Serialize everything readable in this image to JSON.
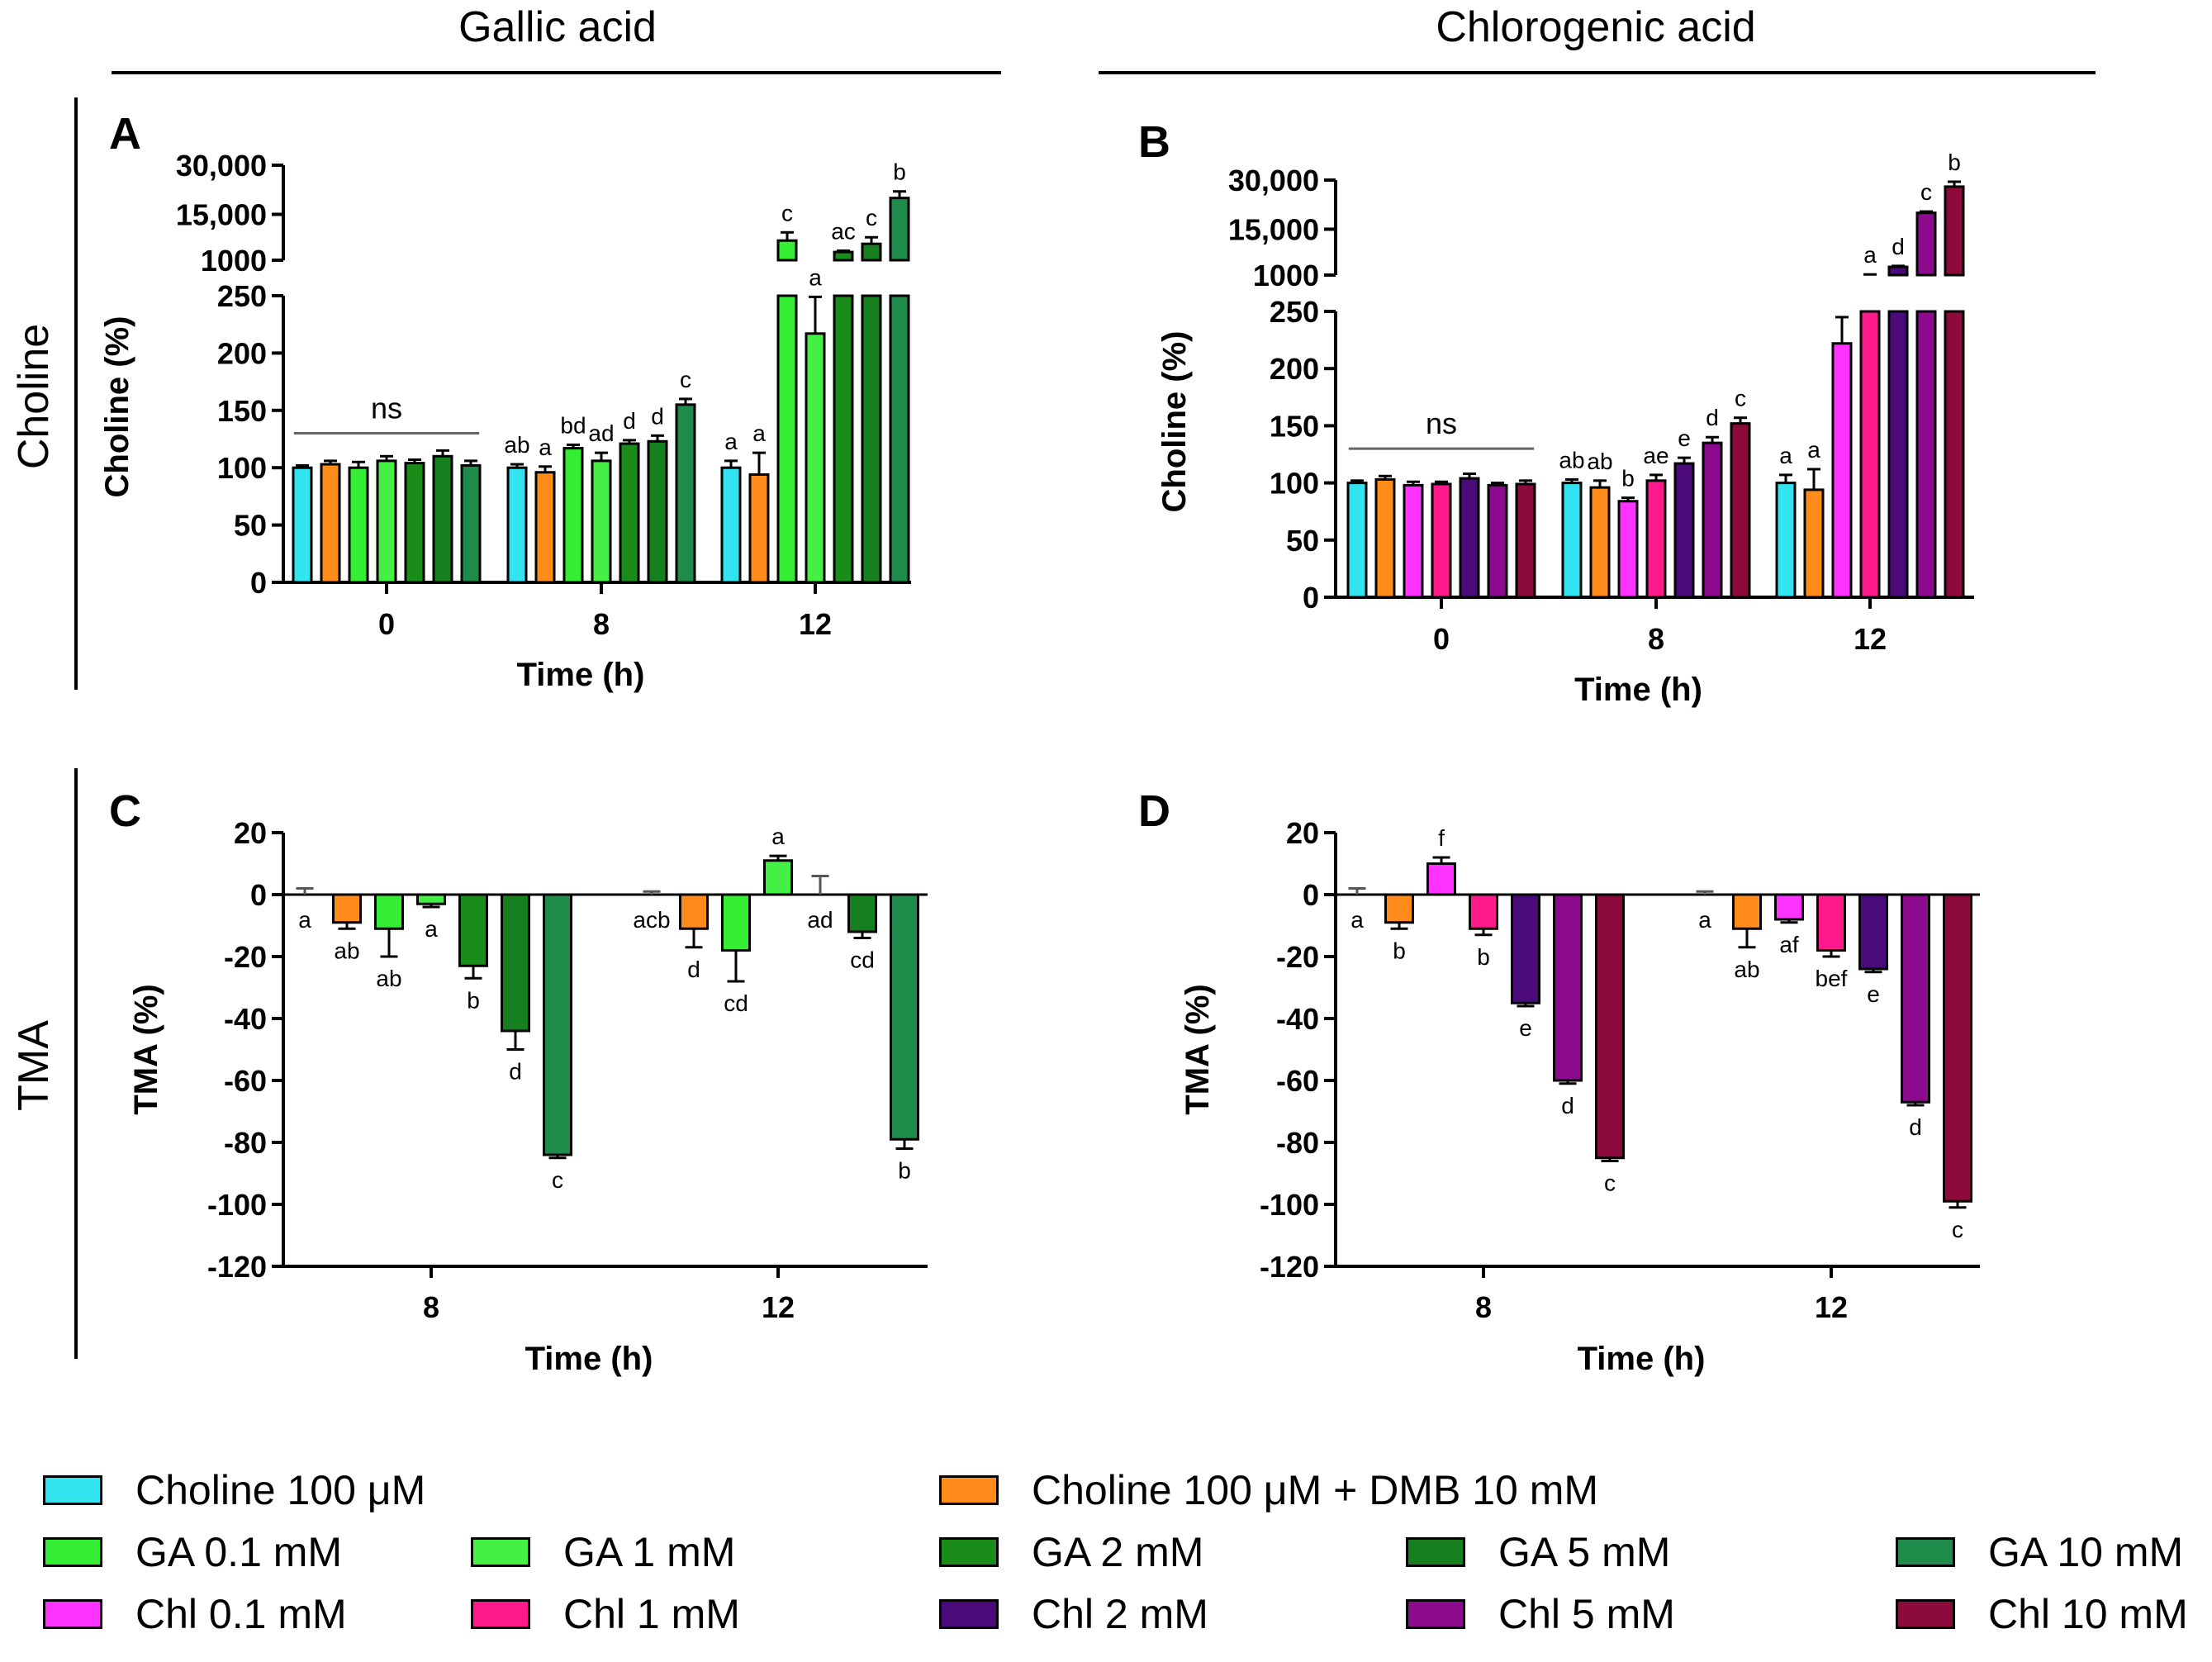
{
  "figure": {
    "column_titles": [
      "Gallic acid",
      "Chlorogenic acid"
    ],
    "row_titles": [
      "Choline",
      "TMA"
    ]
  },
  "colors": {
    "choline": "#33e3f0",
    "dmb": "#ff8c1a",
    "ga01": "#33ee33",
    "ga1": "#44f044",
    "ga2": "#1a8c1a",
    "ga5": "#16801e",
    "ga10": "#1f8c4c",
    "chl01": "#ff33ff",
    "chl1": "#ff1a8c",
    "chl2": "#4a0a7a",
    "chl5": "#8c0a8c",
    "chl10": "#8c0a3c"
  },
  "legend": [
    {
      "label": "Choline 100 μM",
      "color": "#33e3f0"
    },
    {
      "label": "Choline 100 μM + DMB 10 mM",
      "color": "#ff8c1a"
    },
    {
      "label": "GA 0.1 mM",
      "color": "#33ee33"
    },
    {
      "label": "GA 1 mM",
      "color": "#44f044"
    },
    {
      "label": "GA 2 mM",
      "color": "#1a8c1a"
    },
    {
      "label": "GA 5 mM",
      "color": "#16801e"
    },
    {
      "label": "GA 10 mM",
      "color": "#1f8c4c"
    },
    {
      "label": "Chl 0.1 mM",
      "color": "#ff33ff"
    },
    {
      "label": "Chl 1 mM",
      "color": "#ff1a8c"
    },
    {
      "label": "Chl 2 mM",
      "color": "#4a0a7a"
    },
    {
      "label": "Chl 5 mM",
      "color": "#8c0a8c"
    },
    {
      "label": "Chl 10 mM",
      "color": "#8c0a3c"
    }
  ],
  "chart_data": [
    {
      "panel": "A",
      "type": "bar",
      "ylabel": "Choline (%)",
      "xlabel": "Time (h)",
      "categories": [
        "0",
        "8",
        "12"
      ],
      "ylim_lower": [
        0,
        250
      ],
      "yticks_lower": [
        0,
        50,
        100,
        150,
        200,
        250
      ],
      "ylim_upper": [
        1000,
        30000
      ],
      "yticks_upper": [
        "1000",
        "15,000",
        "30,000"
      ],
      "ns_label": "ns",
      "series_colors": [
        "#33e3f0",
        "#ff8c1a",
        "#33ee33",
        "#44f044",
        "#1a8c1a",
        "#16801e",
        "#1f8c4c"
      ],
      "groups": [
        {
          "values": [
            100,
            103,
            100,
            106,
            104,
            110,
            102
          ],
          "errors": [
            2,
            3,
            5,
            4,
            3,
            5,
            4
          ],
          "letters": [
            "",
            "",
            "",
            "",
            "",
            "",
            ""
          ]
        },
        {
          "values": [
            100,
            96,
            117,
            106,
            121,
            123,
            155
          ],
          "errors": [
            3,
            5,
            3,
            7,
            3,
            5,
            5
          ],
          "letters": [
            "ab",
            "a",
            "bd",
            "ad",
            "d",
            "d",
            "c"
          ]
        },
        {
          "values": [
            100,
            94,
            7000,
            217,
            3500,
            6000,
            20000
          ],
          "errors": [
            6,
            19,
            2500,
            32,
            400,
            2000,
            2000
          ],
          "letters": [
            "a",
            "a",
            "c",
            "a",
            "ac",
            "c",
            "b"
          ]
        }
      ]
    },
    {
      "panel": "B",
      "type": "bar",
      "ylabel": "Choline (%)",
      "xlabel": "Time (h)",
      "categories": [
        "0",
        "8",
        "12"
      ],
      "ylim_lower": [
        0,
        250
      ],
      "yticks_lower": [
        0,
        50,
        100,
        150,
        200,
        250
      ],
      "ylim_upper": [
        1000,
        30000
      ],
      "yticks_upper": [
        "1000",
        "15,000",
        "30,000"
      ],
      "ns_label": "ns",
      "series_colors": [
        "#33e3f0",
        "#ff8c1a",
        "#ff33ff",
        "#ff1a8c",
        "#4a0a7a",
        "#8c0a8c",
        "#8c0a3c"
      ],
      "groups": [
        {
          "values": [
            100,
            103,
            98,
            99,
            104,
            98,
            99
          ],
          "errors": [
            2,
            3,
            3,
            2,
            4,
            2,
            3
          ],
          "letters": [
            "",
            "",
            "",
            "",
            "",
            "",
            ""
          ]
        },
        {
          "values": [
            100,
            96,
            84,
            102,
            117,
            135,
            152
          ],
          "errors": [
            3,
            6,
            3,
            5,
            5,
            5,
            5
          ],
          "letters": [
            "ab",
            "ab",
            "b",
            "ae",
            "e",
            "d",
            "c"
          ]
        },
        {
          "values": [
            100,
            94,
            222,
            1000,
            3500,
            20000,
            28000
          ],
          "errors": [
            7,
            18,
            23,
            200,
            300,
            400,
            1500
          ],
          "letters": [
            "a",
            "a",
            "",
            "a",
            "d",
            "c",
            "b"
          ]
        }
      ]
    },
    {
      "panel": "C",
      "type": "bar",
      "ylabel": "TMA (%)",
      "xlabel": "Time (h)",
      "categories": [
        "8",
        "12"
      ],
      "ylim": [
        -120,
        20
      ],
      "yticks": [
        -120,
        -100,
        -80,
        -60,
        -40,
        -20,
        0,
        20
      ],
      "series_colors": [
        "#33e3f0",
        "#ff8c1a",
        "#33ee33",
        "#44f044",
        "#1a8c1a",
        "#16801e",
        "#1f8c4c"
      ],
      "groups": [
        {
          "values": [
            0,
            -9,
            -11,
            -3,
            -23,
            -44,
            -84
          ],
          "errors": [
            2,
            2,
            9,
            1,
            4,
            6,
            1
          ],
          "letters": [
            "a",
            "ab",
            "ab",
            "a",
            "b",
            "d",
            "c"
          ]
        },
        {
          "values": [
            0,
            -11,
            -18,
            11,
            0,
            -12,
            -79
          ],
          "errors": [
            1,
            6,
            10,
            1.5,
            6,
            2,
            3
          ],
          "letters": [
            "acb",
            "d",
            "cd",
            "a",
            "ad",
            "cd",
            "b"
          ]
        }
      ]
    },
    {
      "panel": "D",
      "type": "bar",
      "ylabel": "TMA (%)",
      "xlabel": "Time (h)",
      "categories": [
        "8",
        "12"
      ],
      "ylim": [
        -120,
        20
      ],
      "yticks": [
        -120,
        -100,
        -80,
        -60,
        -40,
        -20,
        0,
        20
      ],
      "series_colors": [
        "#33e3f0",
        "#ff8c1a",
        "#ff33ff",
        "#ff1a8c",
        "#4a0a7a",
        "#8c0a8c",
        "#8c0a3c"
      ],
      "groups": [
        {
          "values": [
            0,
            -9,
            10,
            -11,
            -35,
            -60,
            -85
          ],
          "errors": [
            2,
            2,
            2,
            2,
            1,
            1,
            1
          ],
          "letters": [
            "a",
            "b",
            "f",
            "b",
            "e",
            "d",
            "c"
          ]
        },
        {
          "values": [
            0,
            -11,
            -8,
            -18,
            -24,
            -67,
            -99
          ],
          "errors": [
            1,
            6,
            1,
            2,
            1,
            1,
            2
          ],
          "letters": [
            "a",
            "ab",
            "af",
            "bef",
            "e",
            "d",
            "c"
          ]
        }
      ]
    }
  ]
}
